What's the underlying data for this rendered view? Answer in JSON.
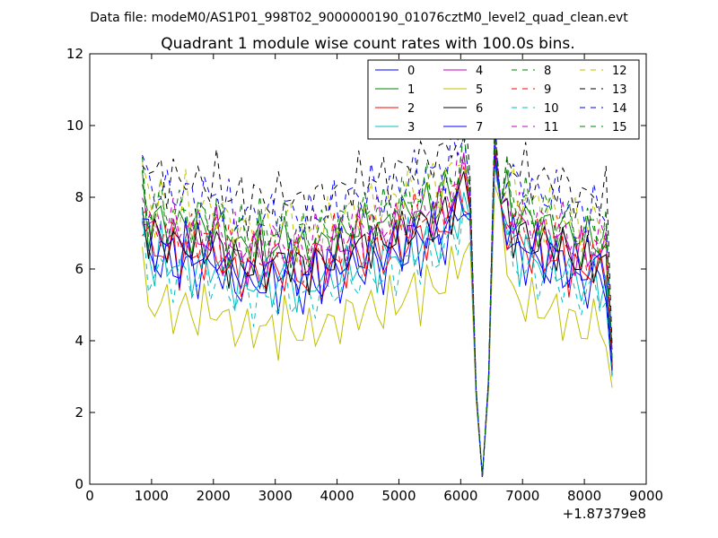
{
  "chart_data": {
    "type": "line",
    "suptitle": "Data file: modeM0/AS1P01_998T02_9000000190_01076cztM0_level2_quad_clean.evt",
    "title": "Quadrant 1 module wise count rates with 100.0s bins.",
    "xlabel": "",
    "ylabel": "",
    "xlim": [
      0,
      9000
    ],
    "ylim": [
      0,
      12
    ],
    "x_offset_label": "+1.87379e8",
    "x_ticks": [
      "0",
      "1000",
      "2000",
      "3000",
      "4000",
      "5000",
      "6000",
      "7000",
      "8000",
      "9000"
    ],
    "y_ticks": [
      "0",
      "2",
      "4",
      "6",
      "8",
      "10",
      "12"
    ],
    "x_start": 850,
    "x_step": 100,
    "legend_position": "top-right",
    "legend_columns": 4,
    "base_profile": [
      7.2,
      6.8,
      6.6,
      6.9,
      6.5,
      6.7,
      6.4,
      6.8,
      6.3,
      6.5,
      6.6,
      6.4,
      6.7,
      6.3,
      6.2,
      6.0,
      6.1,
      5.9,
      6.0,
      6.2,
      5.9,
      6.1,
      6.0,
      6.3,
      6.1,
      5.9,
      6.0,
      5.8,
      6.2,
      6.0,
      6.1,
      6.3,
      6.2,
      6.4,
      6.5,
      6.6,
      6.4,
      6.8,
      6.6,
      6.5,
      6.7,
      6.9,
      6.8,
      7.0,
      7.1,
      7.0,
      7.3,
      7.1,
      7.2,
      7.4,
      7.6,
      7.8,
      8.4,
      7.6,
      2.5,
      0.2,
      2.8,
      9.2,
      7.8,
      7.3,
      7.0,
      6.8,
      6.9,
      6.6,
      6.7,
      6.5,
      6.6,
      6.4,
      6.5,
      6.3,
      6.2,
      6.0,
      6.1,
      6.3,
      6.0,
      6.1,
      3.2
    ],
    "series": [
      {
        "name": "0",
        "color": "#0000ff",
        "dash": "solid",
        "offset": -0.5
      },
      {
        "name": "1",
        "color": "#008000",
        "dash": "solid",
        "offset": 0.6
      },
      {
        "name": "2",
        "color": "#ff0000",
        "dash": "solid",
        "offset": -0.2
      },
      {
        "name": "3",
        "color": "#00bfbf",
        "dash": "solid",
        "offset": -0.4
      },
      {
        "name": "4",
        "color": "#bf00bf",
        "dash": "solid",
        "offset": 0.3
      },
      {
        "name": "5",
        "color": "#bfbf00",
        "dash": "solid",
        "offset": -1.7
      },
      {
        "name": "6",
        "color": "#000000",
        "dash": "solid",
        "offset": 0.1
      },
      {
        "name": "7",
        "color": "#0000ff",
        "dash": "solid",
        "offset": -0.1
      },
      {
        "name": "8",
        "color": "#008000",
        "dash": "dashed",
        "offset": 0.9
      },
      {
        "name": "9",
        "color": "#ff0000",
        "dash": "dashed",
        "offset": 0.4
      },
      {
        "name": "10",
        "color": "#00bfbf",
        "dash": "dashed",
        "offset": -0.8
      },
      {
        "name": "11",
        "color": "#bf00bf",
        "dash": "dashed",
        "offset": 0.7
      },
      {
        "name": "12",
        "color": "#bfbf00",
        "dash": "dashed",
        "offset": 1.1
      },
      {
        "name": "13",
        "color": "#000000",
        "dash": "dashed",
        "offset": 1.9
      },
      {
        "name": "14",
        "color": "#0000ff",
        "dash": "dashed",
        "offset": 1.5
      },
      {
        "name": "15",
        "color": "#008000",
        "dash": "dashed",
        "offset": 1.0
      }
    ]
  }
}
